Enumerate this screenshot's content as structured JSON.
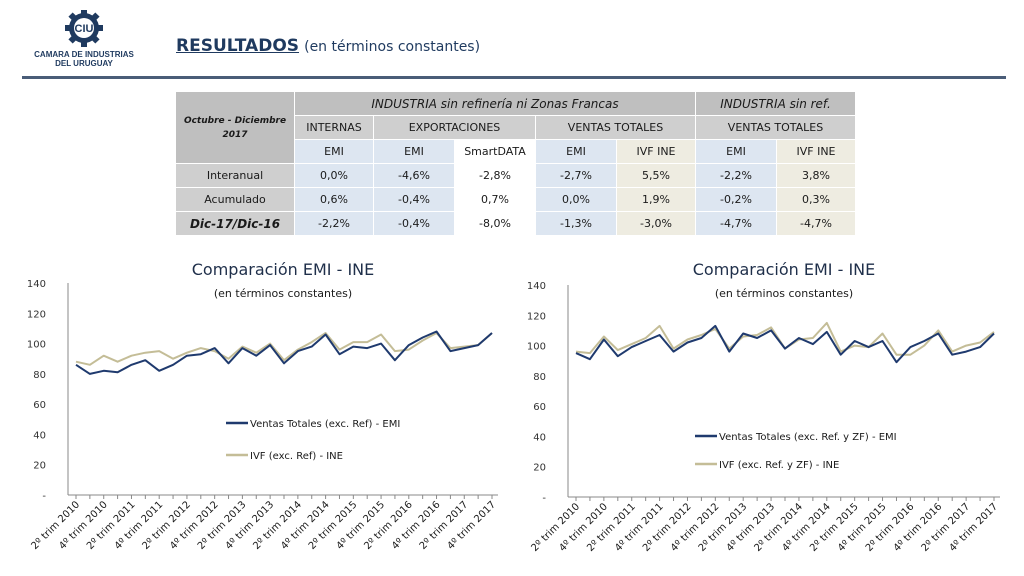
{
  "header": {
    "logo_text_1": "CAMARA DE INDUSTRIAS",
    "logo_text_2": "DEL URUGUAY",
    "logo_mark": "CIU",
    "title_main": "RESULTADOS",
    "title_sub": "(en términos constantes)"
  },
  "table": {
    "corner_line1": "Octubre - Diciembre",
    "corner_line2": "2017",
    "group1": "INDUSTRIA sin refinería ni Zonas Francas",
    "group2": "INDUSTRIA sin ref.",
    "sub": [
      "INTERNAS",
      "EXPORTACIONES",
      "VENTAS TOTALES",
      "VENTAS TOTALES"
    ],
    "sources": [
      "EMI",
      "EMI",
      "SmartDATA",
      "EMI",
      "IVF INE",
      "EMI",
      "IVF INE"
    ],
    "rows": [
      {
        "label": "Interanual",
        "values": [
          "0,0%",
          "-4,6%",
          "-2,8%",
          "-2,7%",
          "5,5%",
          "-2,2%",
          "3,8%"
        ]
      },
      {
        "label": "Acumulado",
        "values": [
          "0,6%",
          "-0,4%",
          "0,7%",
          "0,0%",
          "1,9%",
          "-0,2%",
          "0,3%"
        ]
      },
      {
        "label": "Dic-17/Dic-16",
        "values": [
          "-2,2%",
          "-0,4%",
          "-8,0%",
          "-1,3%",
          "-3,0%",
          "-4,7%",
          "-4,7%"
        ]
      }
    ]
  },
  "chart_data": [
    {
      "type": "line",
      "title": "Comparación EMI - INE",
      "subtitle": "(en términos constantes)",
      "ylim": [
        0,
        140
      ],
      "yticks": [
        "-",
        "20",
        "40",
        "60",
        "80",
        "100",
        "120",
        "140"
      ],
      "x_labels": [
        "2º trim 2010",
        "4º trim 2010",
        "2º trim 2011",
        "4º trim 2011",
        "2º trim 2012",
        "4º trim 2012",
        "2º trim 2013",
        "4º trim 2013",
        "2º trim 2014",
        "4º trim 2014",
        "2º trim 2015",
        "4º trim 2015",
        "2º trim 2016",
        "4º trim 2016",
        "2º trim 2017",
        "4º trim 2017"
      ],
      "series": [
        {
          "name": "Ventas Totales (exc. Ref) - EMI",
          "color": "#1f3a6e",
          "values": [
            86,
            80,
            82,
            81,
            86,
            89,
            82,
            86,
            92,
            93,
            97,
            87,
            97,
            92,
            99,
            87,
            95,
            98,
            106,
            93,
            98,
            97,
            100,
            89,
            99,
            104,
            108,
            95,
            97,
            99,
            107
          ]
        },
        {
          "name": "IVF (exc. Ref) - INE",
          "color": "#c4bd97",
          "values": [
            88,
            86,
            92,
            88,
            92,
            94,
            95,
            90,
            94,
            97,
            95,
            90,
            98,
            94,
            100,
            89,
            96,
            101,
            107,
            96,
            101,
            101,
            106,
            95,
            96,
            102,
            107,
            97,
            98,
            99,
            107
          ]
        }
      ]
    },
    {
      "type": "line",
      "title": "Comparación EMI - INE",
      "subtitle": "(en términos constantes)",
      "ylim": [
        0,
        140
      ],
      "yticks": [
        "-",
        "20",
        "40",
        "60",
        "80",
        "100",
        "120",
        "140"
      ],
      "x_labels": [
        "2º trim 2010",
        "4º trim 2010",
        "2º trim 2011",
        "4º trim 2011",
        "2º trim 2012",
        "4º trim 2012",
        "2º trim 2013",
        "4º trim 2013",
        "2º trim 2014",
        "4º trim 2014",
        "2º trim 2015",
        "4º trim 2015",
        "2º trim 2016",
        "4º trim 2016",
        "2º trim 2017",
        "4º trim 2017"
      ],
      "series": [
        {
          "name": "Ventas Totales (exc. Ref. y ZF) - EMI",
          "color": "#1f3a6e",
          "values": [
            95,
            91,
            104,
            93,
            99,
            103,
            107,
            96,
            102,
            105,
            113,
            96,
            108,
            105,
            110,
            98,
            105,
            101,
            109,
            94,
            103,
            99,
            103,
            89,
            99,
            103,
            108,
            94,
            96,
            99,
            108
          ]
        },
        {
          "name": "IVF (exc. Ref. y ZF) - INE",
          "color": "#c4bd97",
          "values": [
            96,
            95,
            106,
            97,
            101,
            105,
            113,
            98,
            104,
            107,
            111,
            98,
            106,
            107,
            112,
            98,
            104,
            105,
            115,
            96,
            100,
            99,
            108,
            94,
            94,
            100,
            110,
            96,
            100,
            102,
            109
          ]
        }
      ]
    }
  ]
}
